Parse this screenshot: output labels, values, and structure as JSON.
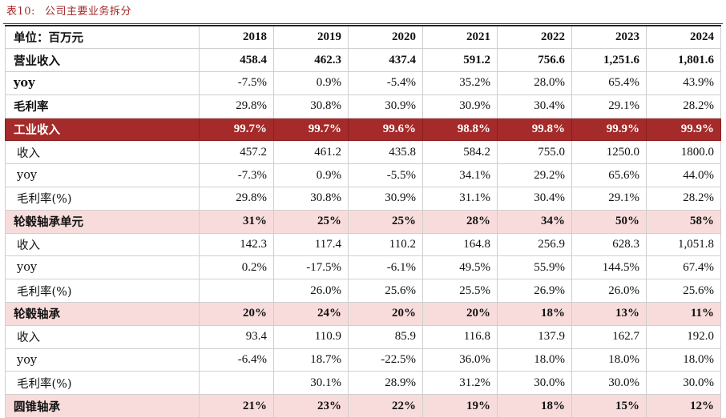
{
  "caption": {
    "label": "表10:",
    "title": "公司主要业务拆分"
  },
  "header": {
    "unit": "单位：百万元",
    "years": [
      "2018",
      "2019",
      "2020",
      "2021",
      "2022",
      "2023",
      "2024"
    ]
  },
  "rows": [
    {
      "label": "营业收入",
      "values": [
        "458.4",
        "462.3",
        "437.4",
        "591.2",
        "756.6",
        "1,251.6",
        "1,801.6"
      ]
    },
    {
      "label": "yoy",
      "values": [
        "-7.5%",
        "0.9%",
        "-5.4%",
        "35.2%",
        "28.0%",
        "65.4%",
        "43.9%"
      ]
    },
    {
      "label": "毛利率",
      "values": [
        "29.8%",
        "30.8%",
        "30.9%",
        "30.9%",
        "30.4%",
        "29.1%",
        "28.2%"
      ]
    },
    {
      "label": "工业收入",
      "values": [
        "99.7%",
        "99.7%",
        "99.6%",
        "98.8%",
        "99.8%",
        "99.9%",
        "99.9%"
      ]
    },
    {
      "label": "收入",
      "values": [
        "457.2",
        "461.2",
        "435.8",
        "584.2",
        "755.0",
        "1250.0",
        "1800.0"
      ]
    },
    {
      "label": "yoy",
      "values": [
        "-7.3%",
        "0.9%",
        "-5.5%",
        "34.1%",
        "29.2%",
        "65.6%",
        "44.0%"
      ]
    },
    {
      "label": "毛利率(%)",
      "values": [
        "29.8%",
        "30.8%",
        "30.9%",
        "31.1%",
        "30.4%",
        "29.1%",
        "28.2%"
      ]
    },
    {
      "label": "轮毂轴承单元",
      "values": [
        "31%",
        "25%",
        "25%",
        "28%",
        "34%",
        "50%",
        "58%"
      ]
    },
    {
      "label": "收入",
      "values": [
        "142.3",
        "117.4",
        "110.2",
        "164.8",
        "256.9",
        "628.3",
        "1,051.8"
      ]
    },
    {
      "label": "yoy",
      "values": [
        "0.2%",
        "-17.5%",
        "-6.1%",
        "49.5%",
        "55.9%",
        "144.5%",
        "67.4%"
      ]
    },
    {
      "label": "毛利率(%)",
      "values": [
        "",
        "26.0%",
        "25.6%",
        "25.5%",
        "26.9%",
        "26.0%",
        "25.6%"
      ]
    },
    {
      "label": "轮毂轴承",
      "values": [
        "20%",
        "24%",
        "20%",
        "20%",
        "18%",
        "13%",
        "11%"
      ]
    },
    {
      "label": "收入",
      "values": [
        "93.4",
        "110.9",
        "85.9",
        "116.8",
        "137.9",
        "162.7",
        "192.0"
      ]
    },
    {
      "label": "yoy",
      "values": [
        "-6.4%",
        "18.7%",
        "-22.5%",
        "36.0%",
        "18.0%",
        "18.0%",
        "18.0%"
      ]
    },
    {
      "label": "毛利率(%)",
      "values": [
        "",
        "30.1%",
        "28.9%",
        "31.2%",
        "30.0%",
        "30.0%",
        "30.0%"
      ]
    },
    {
      "label": "圆锥轴承",
      "values": [
        "21%",
        "23%",
        "22%",
        "19%",
        "18%",
        "15%",
        "12%"
      ]
    }
  ]
}
